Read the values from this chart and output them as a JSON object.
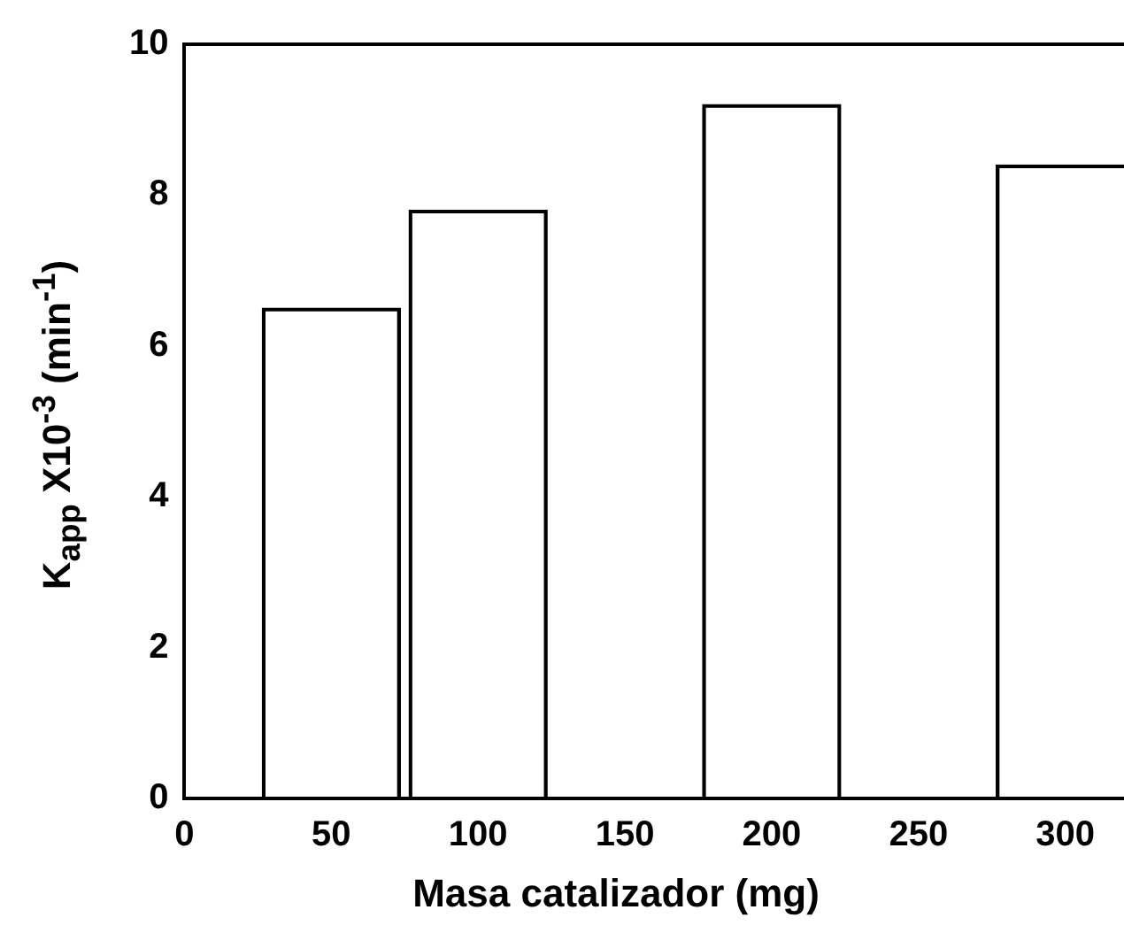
{
  "chart_data": {
    "type": "bar",
    "xlabel": "Masa catalizador (mg)",
    "ylabel": "K$_{app}$ X10$^{-3}$ (min$^{-1}$)",
    "x": [
      50,
      100,
      200,
      300
    ],
    "values": [
      6.5,
      7.8,
      9.2,
      8.4
    ],
    "color": "#000000",
    "xlim": [
      0,
      320
    ],
    "xticks": [
      0,
      50,
      100,
      150,
      200,
      250,
      300
    ],
    "ylim": [
      0,
      10
    ],
    "yticks": [
      0,
      2,
      4,
      6,
      8,
      10
    ],
    "grid": false,
    "legend": false
  }
}
